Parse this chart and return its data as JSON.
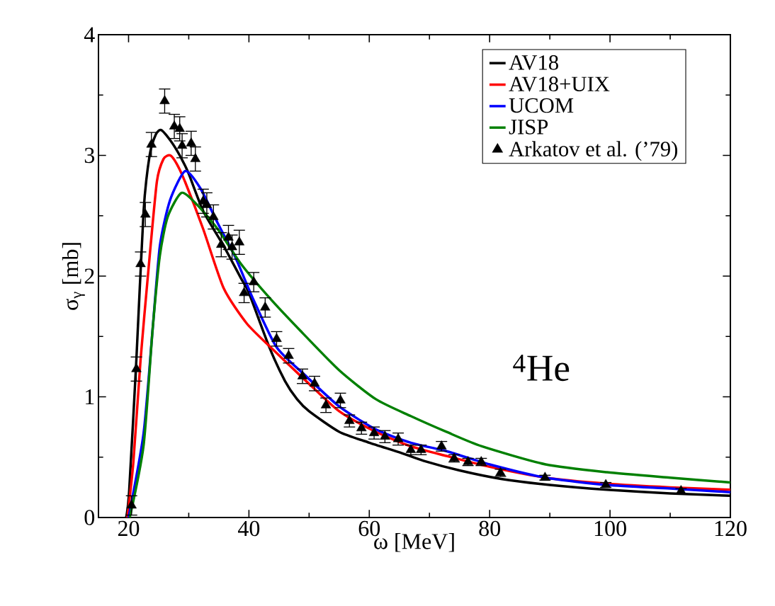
{
  "chart_data": {
    "type": "line",
    "xlabel": "ω [MeV]",
    "ylabel": "σ$_{γ}$ [mb]",
    "annotations": [
      "$^{4}$He"
    ],
    "xlim": [
      15,
      120
    ],
    "ylim": [
      0,
      4
    ],
    "xticks": [
      20,
      40,
      60,
      80,
      100,
      120
    ],
    "yticks": [
      0,
      1,
      2,
      3,
      4
    ],
    "legend": "top right",
    "grid": false,
    "series": [
      {
        "name": "AV18",
        "color": "#000000",
        "x": [
          19.6,
          20.1,
          21.3,
          22.5,
          23.5,
          24.5,
          25.4,
          27,
          28.5,
          29.9,
          32.4,
          35.8,
          38.7,
          40,
          43.4,
          46,
          48,
          50,
          55,
          60,
          65,
          69,
          75,
          81.9,
          90,
          99.5,
          110,
          120
        ],
        "values": [
          0,
          0.22,
          1.31,
          2.54,
          3.0,
          3.17,
          3.21,
          3.12,
          3.0,
          2.86,
          2.54,
          2.25,
          1.98,
          1.86,
          1.41,
          1.13,
          0.98,
          0.88,
          0.71,
          0.62,
          0.54,
          0.47,
          0.39,
          0.32,
          0.27,
          0.23,
          0.2,
          0.18
        ]
      },
      {
        "name": "AV18+UIX",
        "color": "#ff0000",
        "x": [
          19.8,
          20.8,
          22,
          23.3,
          24.7,
          25.8,
          26.9,
          28,
          29.4,
          32.4,
          35.8,
          39.6,
          43.6,
          49.3,
          55,
          61.1,
          66.9,
          72.8,
          80,
          89.3,
          99.5,
          110,
          120
        ],
        "values": [
          0,
          0.46,
          1.31,
          2.05,
          2.78,
          2.97,
          3.0,
          2.93,
          2.78,
          2.39,
          1.9,
          1.61,
          1.41,
          1.14,
          0.88,
          0.71,
          0.59,
          0.51,
          0.42,
          0.33,
          0.28,
          0.25,
          0.23
        ]
      },
      {
        "name": "UCOM",
        "color": "#0000ff",
        "x": [
          20,
          22.5,
          24,
          25.2,
          26.9,
          29.4,
          31.9,
          34.8,
          37.8,
          40.7,
          44.6,
          49.3,
          55,
          61.1,
          66.9,
          72.8,
          80,
          89.3,
          99.5,
          110,
          120
        ],
        "values": [
          0,
          0.7,
          1.56,
          2.25,
          2.63,
          2.87,
          2.73,
          2.44,
          2.15,
          1.81,
          1.41,
          1.18,
          0.92,
          0.73,
          0.62,
          0.55,
          0.44,
          0.33,
          0.27,
          0.24,
          0.21
        ]
      },
      {
        "name": "JISP",
        "color": "#008000",
        "x": [
          20.2,
          22.5,
          24,
          25.2,
          26.5,
          28.8,
          31.4,
          34.8,
          38.7,
          43.6,
          48.5,
          55,
          61.1,
          66.9,
          72.8,
          78.7,
          89.3,
          99.5,
          110,
          120
        ],
        "values": [
          0,
          0.6,
          1.56,
          2.17,
          2.49,
          2.69,
          2.59,
          2.39,
          2.1,
          1.81,
          1.55,
          1.22,
          0.98,
          0.84,
          0.71,
          0.59,
          0.44,
          0.375,
          0.33,
          0.29
        ]
      },
      {
        "name": "Arkatov  et al. (’79)",
        "type": "scatter",
        "marker": "triangle",
        "color": "#000000",
        "x": [
          20.5,
          21.3,
          22.0,
          22.8,
          23.8,
          26.0,
          27.6,
          28.5,
          28.9,
          30.4,
          31.1,
          32.4,
          33.0,
          34.1,
          35.4,
          36.6,
          37.2,
          38.4,
          39.2,
          40.8,
          42.7,
          44.6,
          46.6,
          48.9,
          50.9,
          52.8,
          55.2,
          56.7,
          58.7,
          60.8,
          62.6,
          64.8,
          66.9,
          68.6,
          72.0,
          74.1,
          76.4,
          78.6,
          81.8,
          89.2,
          99.3,
          111.8
        ],
        "values": [
          0.1,
          1.23,
          2.1,
          2.51,
          3.09,
          3.45,
          3.24,
          3.22,
          3.08,
          3.1,
          2.97,
          2.62,
          2.59,
          2.49,
          2.26,
          2.32,
          2.24,
          2.28,
          1.86,
          1.95,
          1.74,
          1.48,
          1.34,
          1.17,
          1.11,
          0.93,
          0.97,
          0.8,
          0.74,
          0.7,
          0.67,
          0.65,
          0.56,
          0.56,
          0.59,
          0.49,
          0.46,
          0.46,
          0.37,
          0.33,
          0.27,
          0.22
        ],
        "errors": [
          0.08,
          0.1,
          0.1,
          0.1,
          0.1,
          0.1,
          0.1,
          0.1,
          0.1,
          0.1,
          0.1,
          0.1,
          0.1,
          0.1,
          0.1,
          0.1,
          0.1,
          0.1,
          0.08,
          0.08,
          0.08,
          0.06,
          0.06,
          0.06,
          0.06,
          0.06,
          0.06,
          0.05,
          0.05,
          0.05,
          0.05,
          0.05,
          0.04,
          0.04,
          0.04,
          0.03,
          0.03,
          0.03,
          0.03,
          0.02,
          0.02,
          0.02
        ]
      }
    ]
  }
}
